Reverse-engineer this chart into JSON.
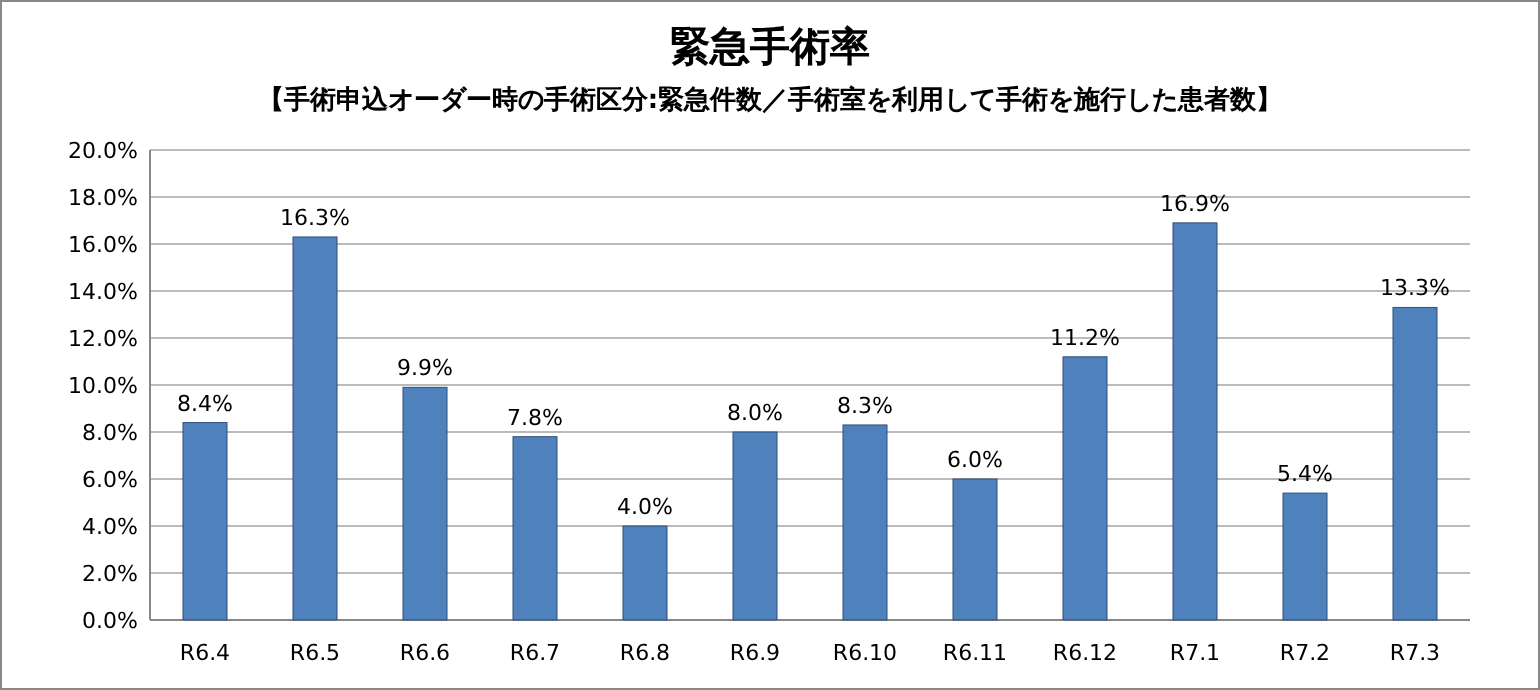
{
  "chart_data": {
    "type": "bar",
    "title": "緊急手術率",
    "subtitle": "【手術申込オーダー時の手術区分:緊急件数／手術室を利用して手術を施行した患者数】",
    "categories": [
      "R6.4",
      "R6.5",
      "R6.6",
      "R6.7",
      "R6.8",
      "R6.9",
      "R6.10",
      "R6.11",
      "R6.12",
      "R7.1",
      "R7.2",
      "R7.3"
    ],
    "values": [
      8.4,
      16.3,
      9.9,
      7.8,
      4.0,
      8.0,
      8.3,
      6.0,
      11.2,
      16.9,
      5.4,
      13.3
    ],
    "value_labels": [
      "8.4%",
      "16.3%",
      "9.9%",
      "7.8%",
      "4.0%",
      "8.0%",
      "8.3%",
      "6.0%",
      "11.2%",
      "16.9%",
      "5.4%",
      "13.3%"
    ],
    "color": "#4f81bd",
    "ylim": [
      0,
      20
    ],
    "yticks": [
      {
        "value": 0,
        "label": "0.0%"
      },
      {
        "value": 2,
        "label": "2.0%"
      },
      {
        "value": 4,
        "label": "4.0%"
      },
      {
        "value": 6,
        "label": "6.0%"
      },
      {
        "value": 8,
        "label": "8.0%"
      },
      {
        "value": 10,
        "label": "10.0%"
      },
      {
        "value": 12,
        "label": "12.0%"
      },
      {
        "value": 14,
        "label": "14.0%"
      },
      {
        "value": 16,
        "label": "16.0%"
      },
      {
        "value": 18,
        "label": "18.0%"
      },
      {
        "value": 20,
        "label": "20.0%"
      }
    ],
    "grid": "y"
  }
}
